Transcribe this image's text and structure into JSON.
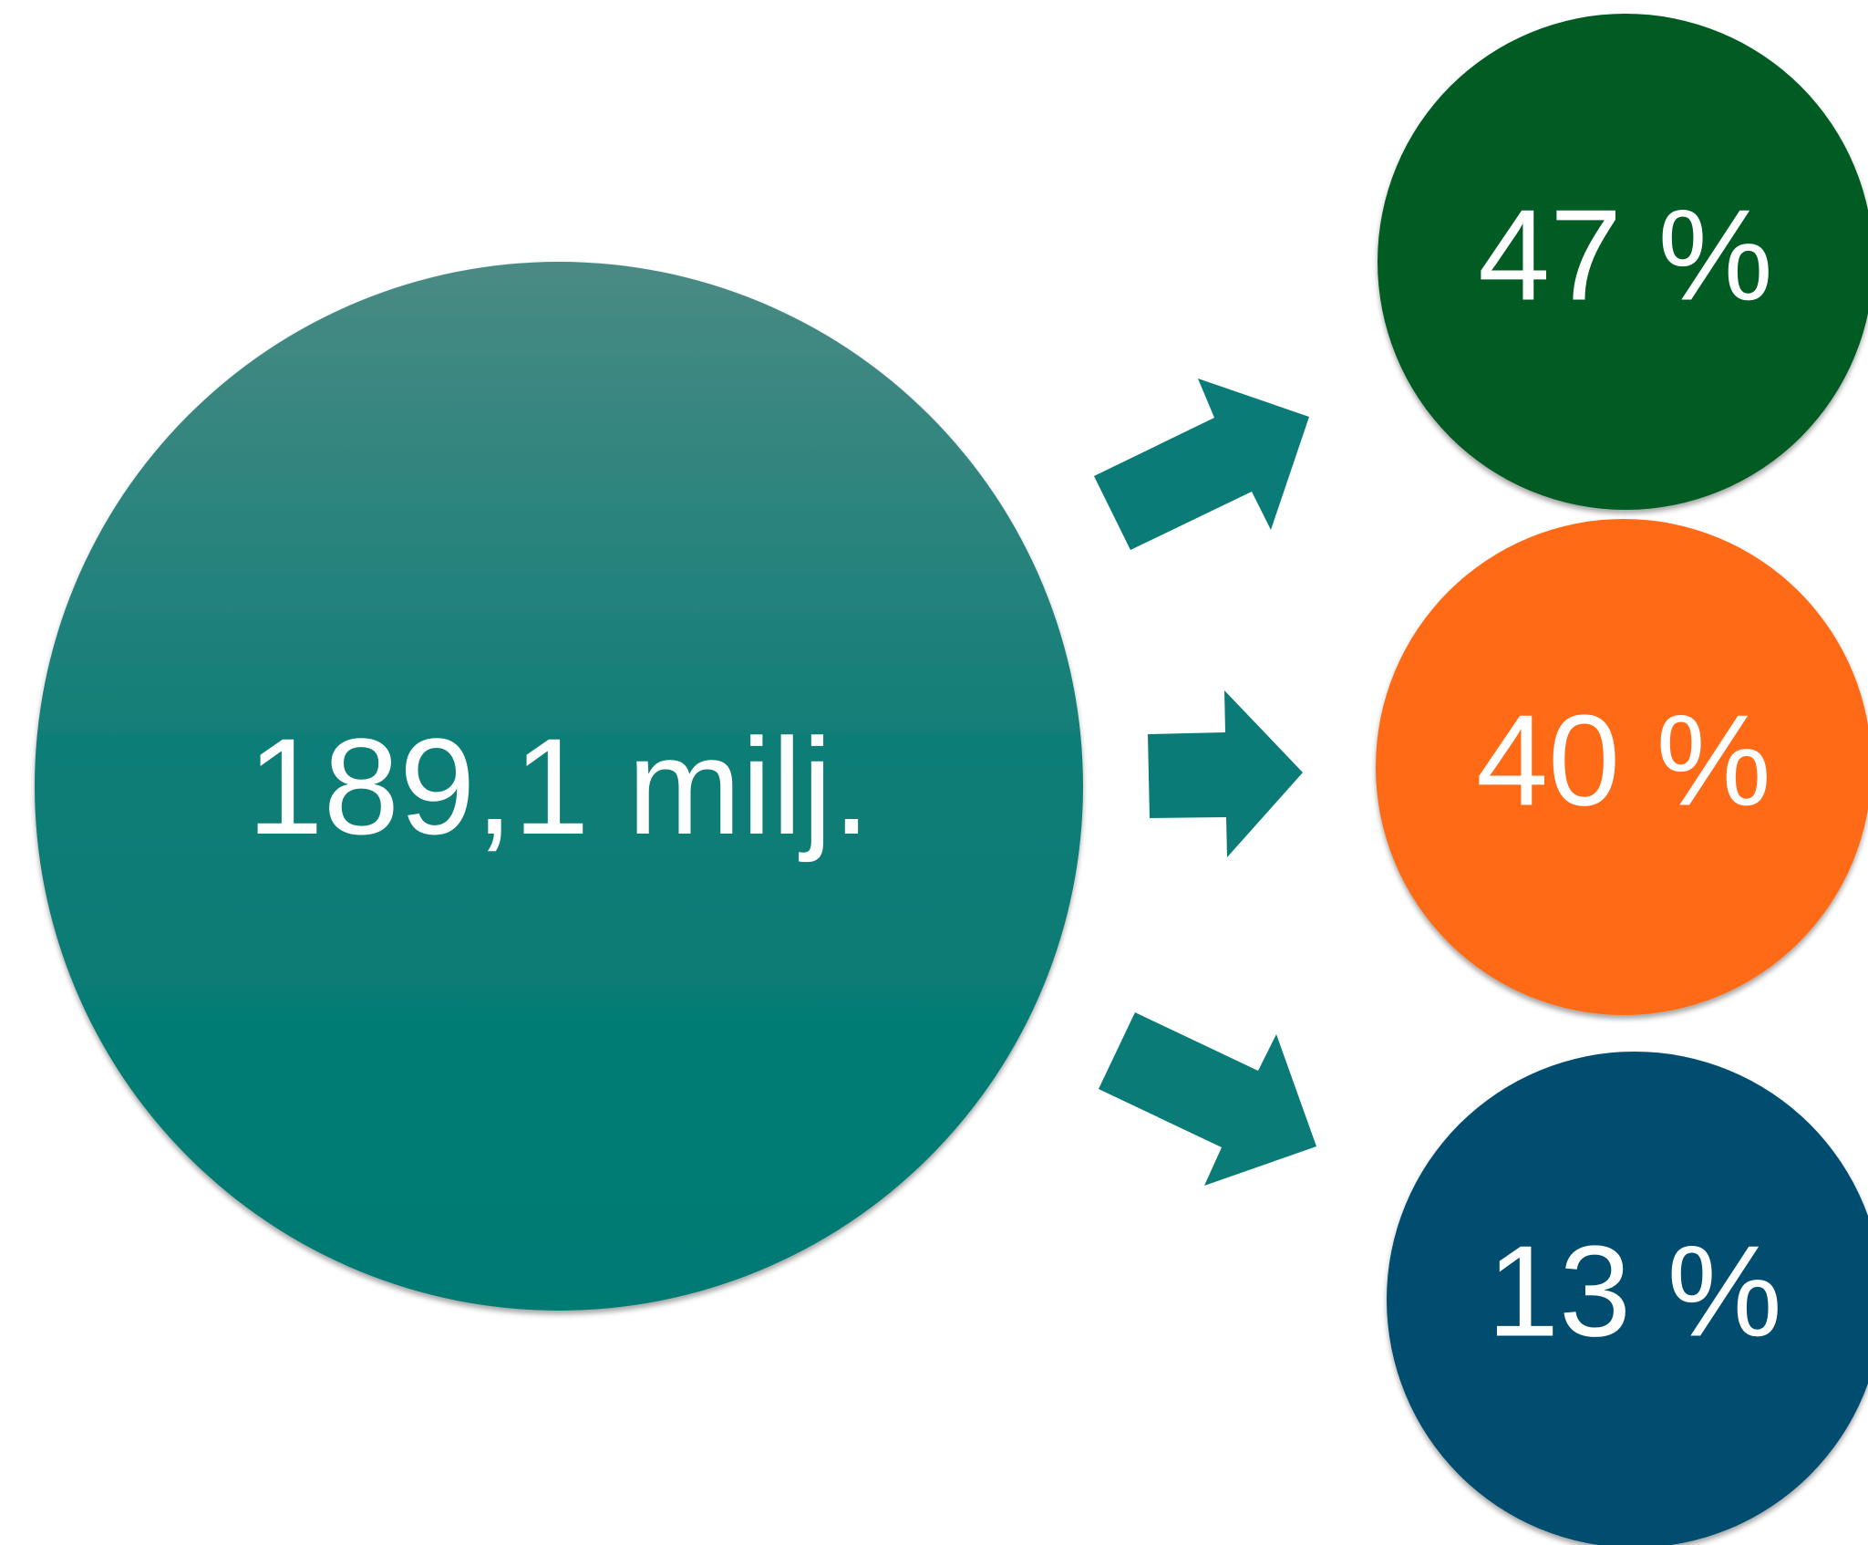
{
  "total": {
    "label": "189,1 milj.",
    "color_top": "#4a8a84",
    "color_bottom": "#007a73"
  },
  "shares": [
    {
      "label": "47 %",
      "value": 47,
      "color": "#045c20"
    },
    {
      "label": "40 %",
      "value": 40,
      "color": "#ff6b14"
    },
    {
      "label": "13 %",
      "value": 13,
      "color": "#014e70"
    }
  ],
  "arrow_color": "#0a7b76",
  "shadow_color": "#7a7a7a"
}
